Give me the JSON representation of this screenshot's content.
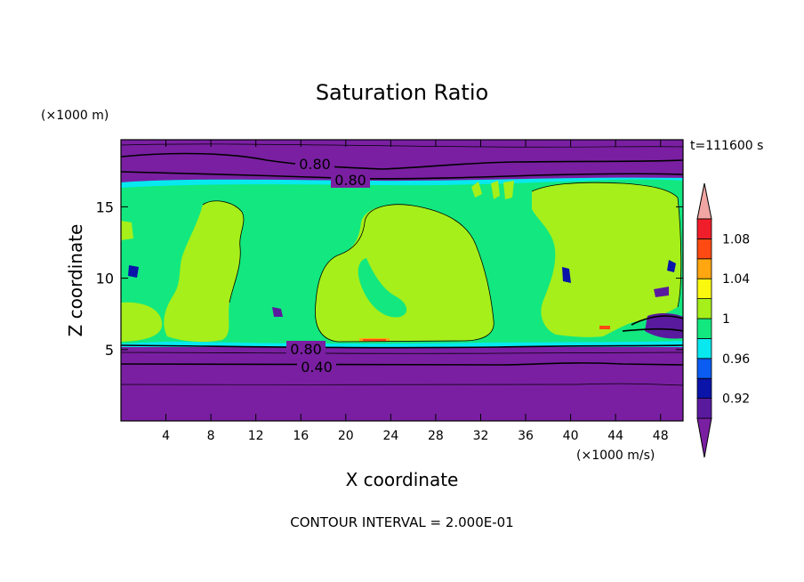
{
  "chart_data": {
    "type": "heatmap",
    "title": "Saturation Ratio",
    "xlabel": "X coordinate",
    "ylabel": "Z coordinate",
    "x_unit": "(×1000 m/s)",
    "y_unit": "(×1000 m)",
    "time_label": "t=111600 s",
    "footer": "CONTOUR INTERVAL = 2.000E-01",
    "xlim": [
      0,
      50
    ],
    "ylim": [
      0,
      19.7
    ],
    "x_ticks": [
      4,
      8,
      12,
      16,
      20,
      24,
      28,
      32,
      36,
      40,
      44,
      48
    ],
    "y_ticks": [
      5,
      10,
      15
    ],
    "colorbar": {
      "labels": [
        {
          "value": 0.92,
          "text": "0.92"
        },
        {
          "value": 0.96,
          "text": "0.96"
        },
        {
          "value": 1.0,
          "text": "1"
        },
        {
          "value": 1.04,
          "text": "1.04"
        },
        {
          "value": 1.08,
          "text": "1.08"
        }
      ],
      "levels": [
        {
          "lo": null,
          "hi": 0.9,
          "color": "#7a1fa2"
        },
        {
          "lo": 0.9,
          "hi": 0.92,
          "color": "#5a1a9e"
        },
        {
          "lo": 0.92,
          "hi": 0.94,
          "color": "#0a14a8"
        },
        {
          "lo": 0.94,
          "hi": 0.96,
          "color": "#0b5cf0"
        },
        {
          "lo": 0.96,
          "hi": 0.98,
          "color": "#08e8ef"
        },
        {
          "lo": 0.98,
          "hi": 1.0,
          "color": "#12e87f"
        },
        {
          "lo": 1.0,
          "hi": 1.02,
          "color": "#a6ef1a"
        },
        {
          "lo": 1.02,
          "hi": 1.04,
          "color": "#fbf80f"
        },
        {
          "lo": 1.04,
          "hi": 1.06,
          "color": "#ffa611"
        },
        {
          "lo": 1.06,
          "hi": 1.08,
          "color": "#ff4a13"
        },
        {
          "lo": 1.08,
          "hi": 1.1,
          "color": "#f01e2a"
        },
        {
          "lo": 1.1,
          "hi": null,
          "color": "#f2a6a4"
        }
      ]
    },
    "contour_labels": [
      {
        "text": "0.80",
        "x": 19.5,
        "z": 17.9
      },
      {
        "text": "0.80",
        "x": 23.2,
        "z": 16.9
      },
      {
        "text": "0.80",
        "x": 15.7,
        "z": 5.1
      },
      {
        "text": "0.40",
        "x": 16.8,
        "z": 3.7
      }
    ]
  }
}
